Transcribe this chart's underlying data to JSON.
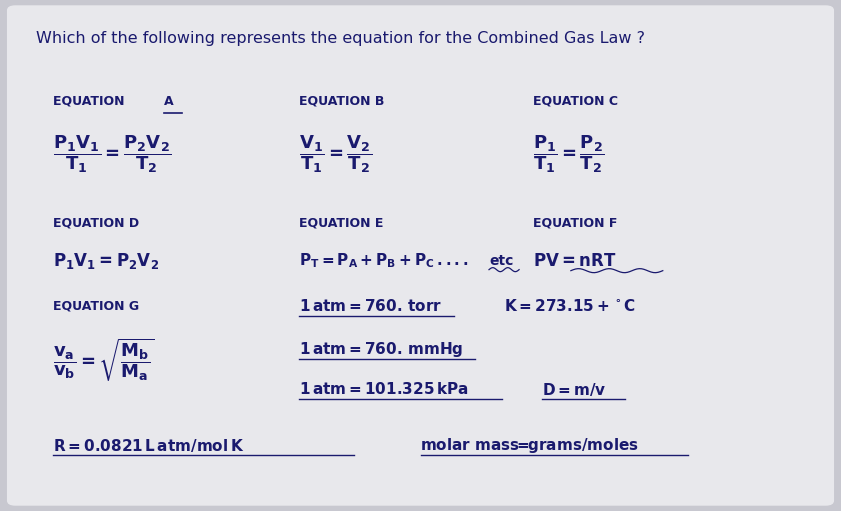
{
  "title": "Which of the following represents the equation for the Combined Gas Law ?",
  "bg_outer": "#c8c8d0",
  "bg_inner": "#e8e8ec",
  "text_color": "#1a1a6e",
  "eq_label_fontsize": 9,
  "eq_content_fontsize": 11,
  "title_fontsize": 11.5
}
